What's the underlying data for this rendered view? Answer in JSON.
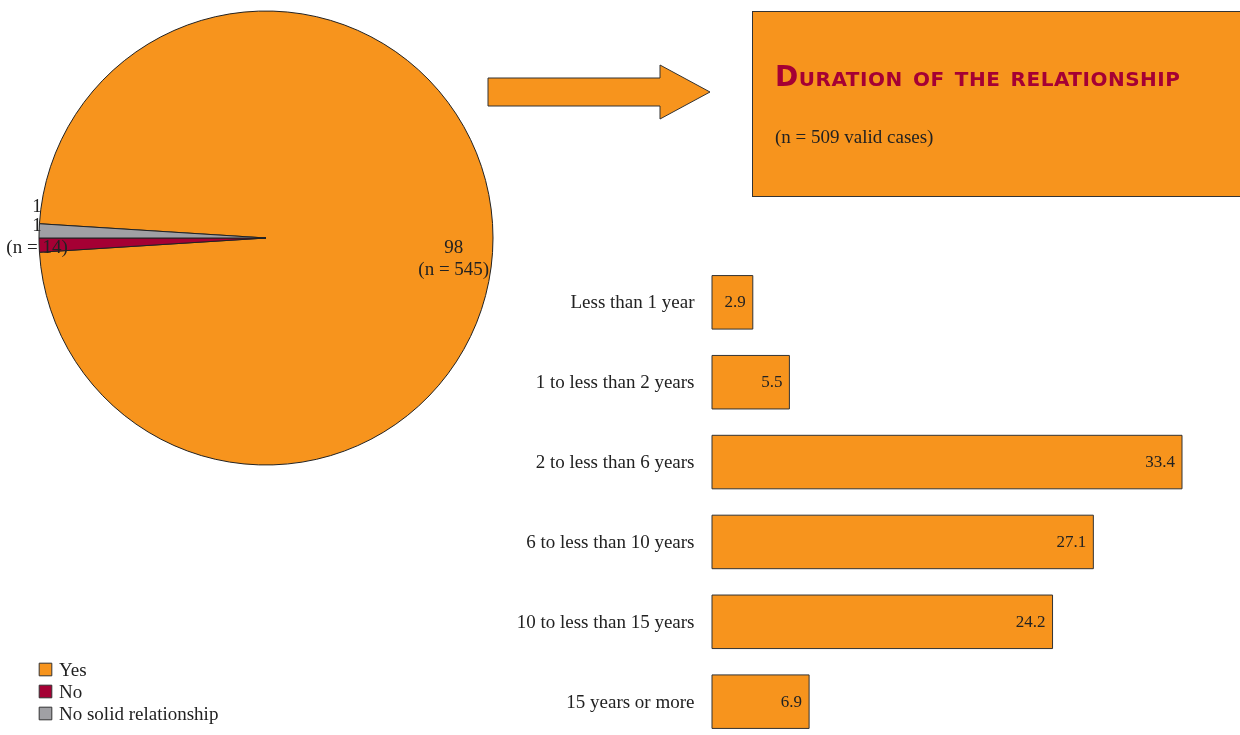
{
  "chart_data": [
    {
      "type": "pie",
      "categories": [
        "Yes",
        "No",
        "No solid relationship"
      ],
      "values": [
        98,
        1,
        1
      ],
      "colors": [
        "#f7941d",
        "#a50034",
        "#a0a0a4"
      ],
      "data_labels": true,
      "annotations": [
        "(n = 545)",
        "(n = 14)"
      ],
      "legend": "bottom left"
    },
    {
      "type": "bar",
      "orientation": "horizontal",
      "title": "Duration of the relationship",
      "subtitle": "(n = 509 valid cases)",
      "categories": [
        "Less than 1 year",
        "1 to less than 2 years",
        "2 to less than 6 years",
        "6 to less than 10 years",
        "10 to less than 15 years",
        "15 years or more"
      ],
      "values": [
        2.9,
        5.5,
        33.4,
        27.1,
        24.2,
        6.9
      ],
      "color": "#f7941d",
      "data_labels": true
    }
  ]
}
